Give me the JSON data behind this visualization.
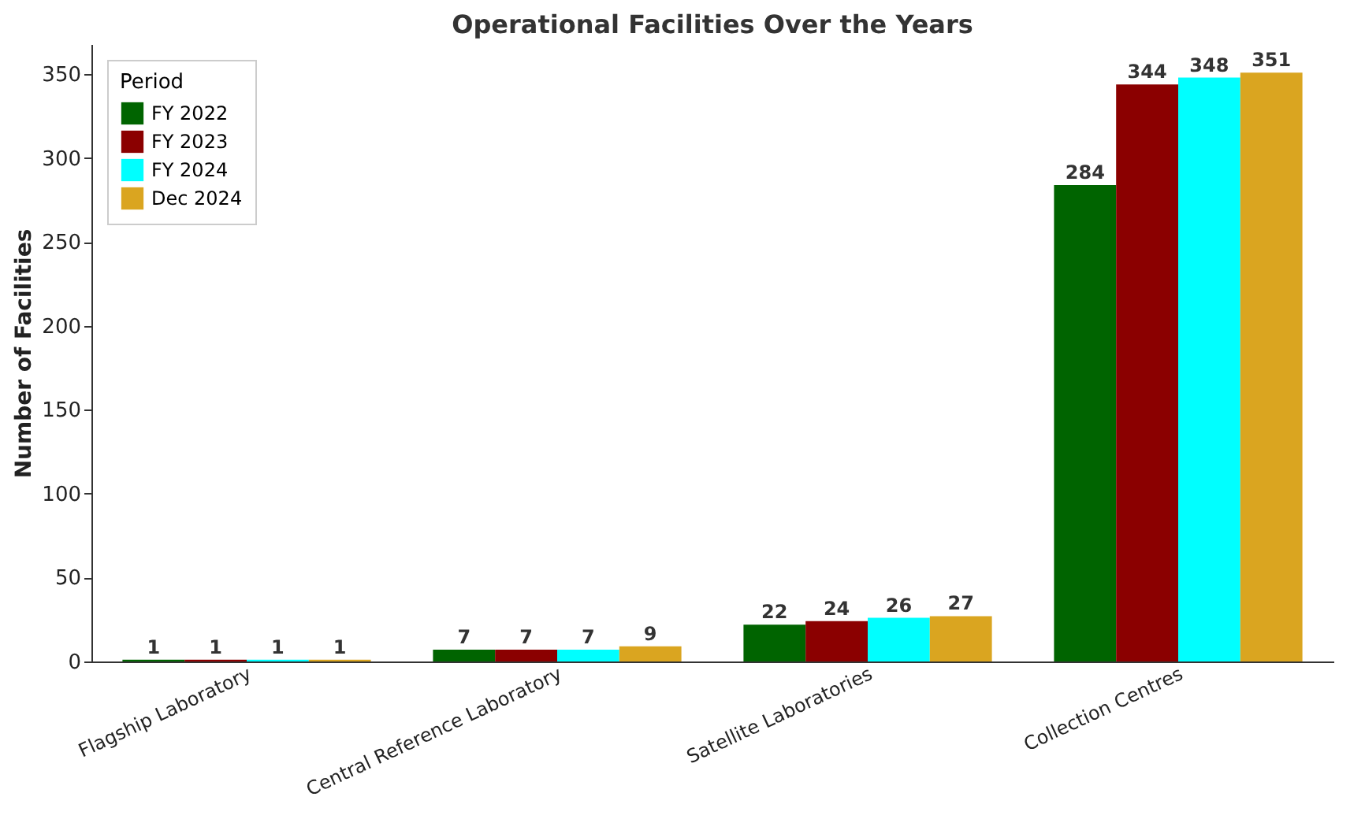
{
  "chart_data": {
    "type": "bar",
    "title": "Operational Facilities Over the Years",
    "ylabel": "Number of Facilities",
    "legend_title": "Period",
    "categories": [
      "Flagship Laboratory",
      "Central Reference Laboratory",
      "Satellite Laboratories",
      "Collection Centres"
    ],
    "series": [
      {
        "name": "FY 2022",
        "color": "#006400",
        "values": [
          1,
          7,
          22,
          284
        ]
      },
      {
        "name": "FY 2023",
        "color": "#8b0000",
        "values": [
          1,
          7,
          24,
          344
        ]
      },
      {
        "name": "FY 2024",
        "color": "#00ffff",
        "values": [
          1,
          7,
          26,
          348
        ]
      },
      {
        "name": "Dec 2024",
        "color": "#daa520",
        "values": [
          1,
          9,
          27,
          351
        ]
      }
    ],
    "ylim": [
      0,
      368
    ],
    "yticks": [
      0,
      50,
      100,
      150,
      200,
      250,
      300,
      350
    ],
    "grid": false,
    "legend": "top left",
    "data_labels": true
  }
}
